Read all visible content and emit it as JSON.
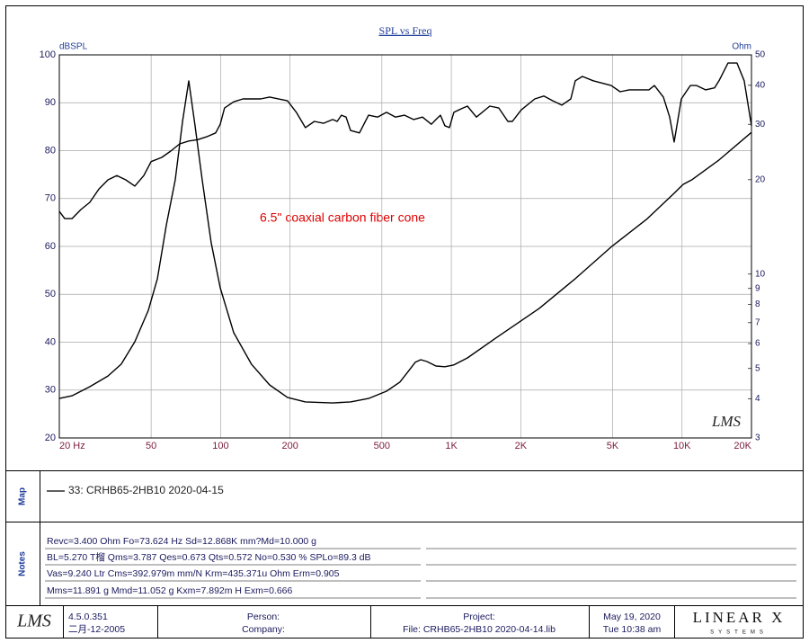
{
  "chart_data": {
    "type": "line",
    "title": "SPL vs Freq",
    "annotation": "6.5\" coaxial carbon fiber cone",
    "y_label": "dBSPL",
    "y2_label": "Ohm",
    "watermark": "LMS",
    "x_log": true,
    "y2_log": true,
    "grid": true,
    "xlim": [
      20,
      20000
    ],
    "xticks": [
      {
        "value": 20,
        "label": "20 Hz"
      },
      50,
      100,
      200,
      500,
      {
        "value": 1000,
        "label": "1K"
      },
      {
        "value": 2000,
        "label": "2K"
      },
      {
        "value": 5000,
        "label": "5K"
      },
      {
        "value": 10000,
        "label": "10K"
      },
      {
        "value": 20000,
        "label": "20K"
      }
    ],
    "ylim": [
      20,
      100
    ],
    "yticks": [
      20,
      30,
      40,
      50,
      60,
      70,
      80,
      90,
      100
    ],
    "y2lim": [
      3,
      50
    ],
    "y2ticks": [
      3,
      4,
      5,
      6,
      7,
      8,
      9,
      10,
      20,
      30,
      40,
      50
    ],
    "series": [
      {
        "name": "33: CRHB65-2HB10 2020-04-15",
        "color": "#000000",
        "x": [
          20,
          21.1,
          22.7,
          24.8,
          27.1,
          29.7,
          32.5,
          35.5,
          38.8,
          42.5,
          46.5,
          50,
          55.6,
          60.8,
          66.5,
          72.8,
          79.6,
          87,
          95.2,
          99.6,
          104,
          114,
          125,
          149,
          163,
          195,
          213,
          233,
          255,
          279,
          306,
          320,
          334,
          350,
          366,
          400,
          438,
          479,
          524,
          573,
          627,
          686,
          750,
          820,
          858,
          897,
          938,
          982,
          1026,
          1123,
          1174,
          1285,
          1469,
          1607,
          1758,
          1839,
          2010,
          2300,
          2518,
          2754,
          3013,
          3296,
          3447,
          3700,
          4121,
          4929,
          5392,
          5898,
          6747,
          7189,
          7588,
          8300,
          8838,
          9247,
          9930,
          10862,
          11563,
          12650,
          13838,
          14468,
          15826,
          17312,
          18590,
          20000
        ],
        "values": [
          67.3,
          65.8,
          65.8,
          67.7,
          69.2,
          72.0,
          73.9,
          74.8,
          73.9,
          72.6,
          74.8,
          77.7,
          78.6,
          79.9,
          81.4,
          82.0,
          82.3,
          82.9,
          83.7,
          85.5,
          88.9,
          90.2,
          90.8,
          90.8,
          91.2,
          90.4,
          88.0,
          84.8,
          86.1,
          85.7,
          86.5,
          86.1,
          87.4,
          87.0,
          84.2,
          83.7,
          87.4,
          87.0,
          88.0,
          87.0,
          87.4,
          86.5,
          87.0,
          85.5,
          86.5,
          87.4,
          85.2,
          84.8,
          88.0,
          88.9,
          89.3,
          87.0,
          89.3,
          88.9,
          86.1,
          86.1,
          88.5,
          90.8,
          91.4,
          90.4,
          89.5,
          90.8,
          94.6,
          95.5,
          94.6,
          93.6,
          92.3,
          92.7,
          92.7,
          92.7,
          93.6,
          91.2,
          87.0,
          81.8,
          90.8,
          93.6,
          93.6,
          92.7,
          93.1,
          94.6,
          98.3,
          98.3,
          94.6,
          85.2
        ]
      },
      {
        "color": "#000000",
        "axis": "y2",
        "x": [
          20,
          22.7,
          27.1,
          32.5,
          37.1,
          42.5,
          48.6,
          53.2,
          58.2,
          63.6,
          68.4,
          72.8,
          77.5,
          83.2,
          91.0,
          99.6,
          114,
          136,
          163,
          195,
          233,
          306,
          366,
          438,
          524,
          598,
          655,
          698,
          737,
          784,
          858,
          938,
          1026,
          1174,
          1536,
          2405,
          3447,
          4929,
          7063,
          9247,
          10108,
          11060,
          14468,
          20000
        ],
        "values": [
          4.01,
          4.09,
          4.37,
          4.73,
          5.16,
          6.08,
          7.66,
          9.66,
          14.35,
          20.0,
          30.7,
          41.3,
          29.7,
          20.0,
          12.6,
          9.04,
          6.5,
          5.16,
          4.43,
          4.04,
          3.91,
          3.88,
          3.91,
          4.01,
          4.23,
          4.52,
          4.92,
          5.23,
          5.33,
          5.26,
          5.09,
          5.06,
          5.13,
          5.4,
          6.2,
          7.77,
          9.66,
          12.2,
          15.0,
          18.1,
          19.3,
          20.0,
          23.1,
          28.3
        ]
      }
    ]
  },
  "map_label": "Map",
  "notes_label": "Notes",
  "notes": [
    "Revc=3.400 Ohm  Fo=73.624 Hz  Sd=12.868K mm?Md=10.000 g",
    "BL=5.270 T榴  Qms=3.787  Qes=0.673  Qts=0.572  No=0.530 %  SPLo=89.3 dB",
    "Vas=9.240 Ltr  Cms=392.979m mm/N  Krm=435.371u Ohm  Erm=0.905",
    "Mms=11.891 g  Mmd=11.052 g  Kxm=7.892m H  Exm=0.666"
  ],
  "footer": {
    "logo": "LMS",
    "version": "4.5.0.351",
    "build_date": "二月-12-2005",
    "person": "Person:",
    "company": "Company:",
    "project": "Project:",
    "file": "File: CRHB65-2HB10 2020-04-14.lib",
    "date": "May 19, 2020",
    "time": "Tue 10:38 am",
    "brand": "LINEAR X",
    "brand_sub": "SYSTEMS"
  }
}
